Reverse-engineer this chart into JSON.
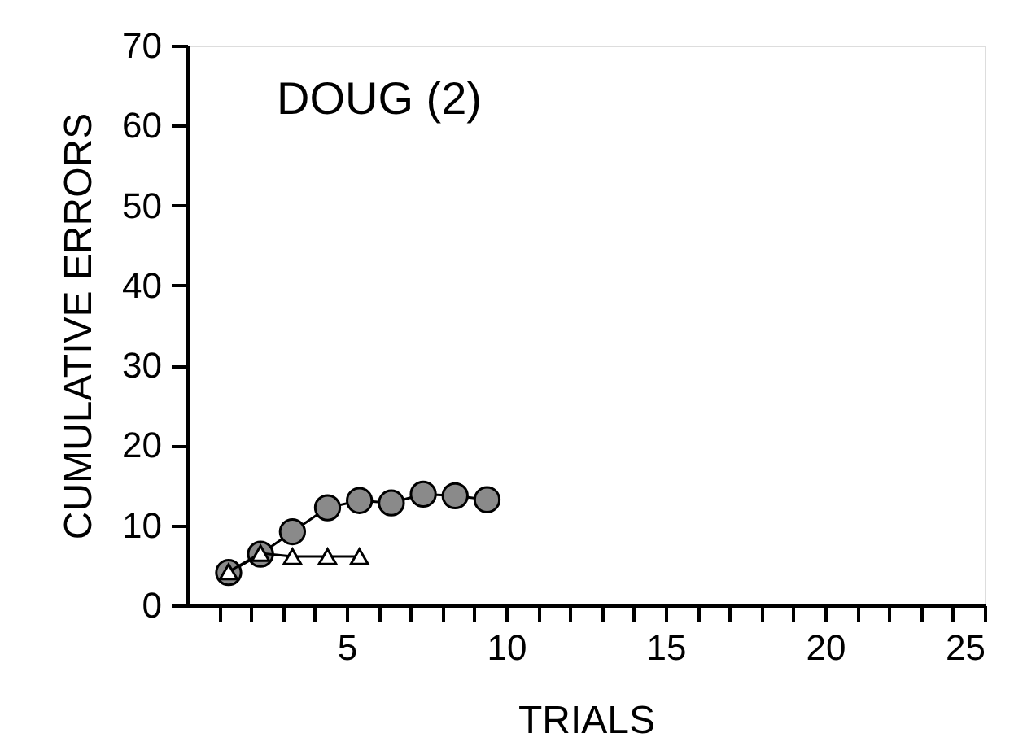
{
  "chart_data": {
    "type": "line",
    "xlabel": "TRIALS",
    "ylabel": "CUMULATIVE ERRORS",
    "annotations": [
      "DOUG (2)"
    ],
    "series": [
      {
        "color": "#8a8a8a",
        "marker": "circle",
        "x": [
          1.3,
          2.3,
          3.3,
          4.4,
          5.4,
          6.4,
          7.4,
          8.4,
          9.4
        ],
        "values": [
          4.1,
          6.4,
          9.2,
          12.2,
          13.1,
          12.8,
          13.9,
          13.7,
          13.2
        ]
      },
      {
        "color": "#ffffff",
        "marker": "triangle",
        "x": [
          1.3,
          2.3,
          3.3,
          4.4,
          5.4
        ],
        "values": [
          4.2,
          6.5,
          6.1,
          6.1,
          6.1
        ]
      }
    ],
    "xlim": [
      0,
      25
    ],
    "xticks": [
      {
        "value": 1,
        "label": null
      },
      {
        "value": 2,
        "label": null
      },
      {
        "value": 3,
        "label": null
      },
      {
        "value": 4,
        "label": null
      },
      5,
      {
        "value": 6,
        "label": null
      },
      {
        "value": 7,
        "label": null
      },
      {
        "value": 8,
        "label": null
      },
      {
        "value": 9,
        "label": null
      },
      10,
      {
        "value": 11,
        "label": null
      },
      {
        "value": 12,
        "label": null
      },
      {
        "value": 13,
        "label": null
      },
      {
        "value": 14,
        "label": null
      },
      15,
      {
        "value": 16,
        "label": null
      },
      {
        "value": 17,
        "label": null
      },
      {
        "value": 18,
        "label": null
      },
      {
        "value": 19,
        "label": null
      },
      20,
      {
        "value": 21,
        "label": null
      },
      {
        "value": 22,
        "label": null
      },
      {
        "value": 23,
        "label": null
      },
      {
        "value": 24,
        "label": null
      },
      25
    ],
    "ylim": [
      0,
      70
    ],
    "yticks": [
      0,
      10,
      20,
      30,
      40,
      50,
      60,
      70
    ],
    "grid": false,
    "line_style": "solid"
  }
}
